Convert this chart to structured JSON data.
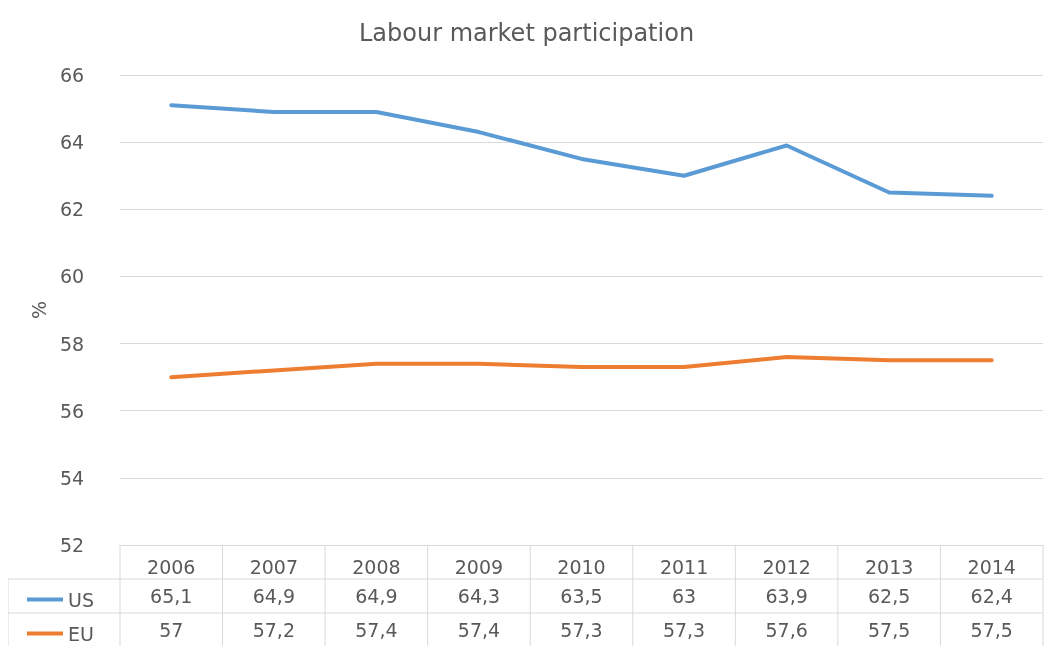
{
  "chart_data": {
    "type": "line",
    "title": "Labour market participation",
    "ylabel": "%",
    "categories": [
      "2006",
      "2007",
      "2008",
      "2009",
      "2010",
      "2011",
      "2012",
      "2013",
      "2014"
    ],
    "series": [
      {
        "name": "US",
        "color": "#5b9bd5",
        "values": [
          65.1,
          64.9,
          64.9,
          64.3,
          63.5,
          63,
          63.9,
          62.5,
          62.4
        ],
        "value_labels": [
          "65,1",
          "64,9",
          "64,9",
          "64,3",
          "63,5",
          "63",
          "63,9",
          "62,5",
          "62,4"
        ]
      },
      {
        "name": "EU",
        "color": "#ed7d31",
        "values": [
          57,
          57.2,
          57.4,
          57.4,
          57.3,
          57.3,
          57.6,
          57.5,
          57.5
        ],
        "value_labels": [
          "57",
          "57,2",
          "57,4",
          "57,4",
          "57,3",
          "57,3",
          "57,6",
          "57,5",
          "57,5"
        ]
      }
    ],
    "ylim": [
      52,
      66
    ],
    "yticks": [
      52,
      54,
      56,
      58,
      60,
      62,
      64,
      66
    ],
    "grid": "y",
    "legend": "bottom",
    "marker": "none",
    "line_style": "solid"
  }
}
